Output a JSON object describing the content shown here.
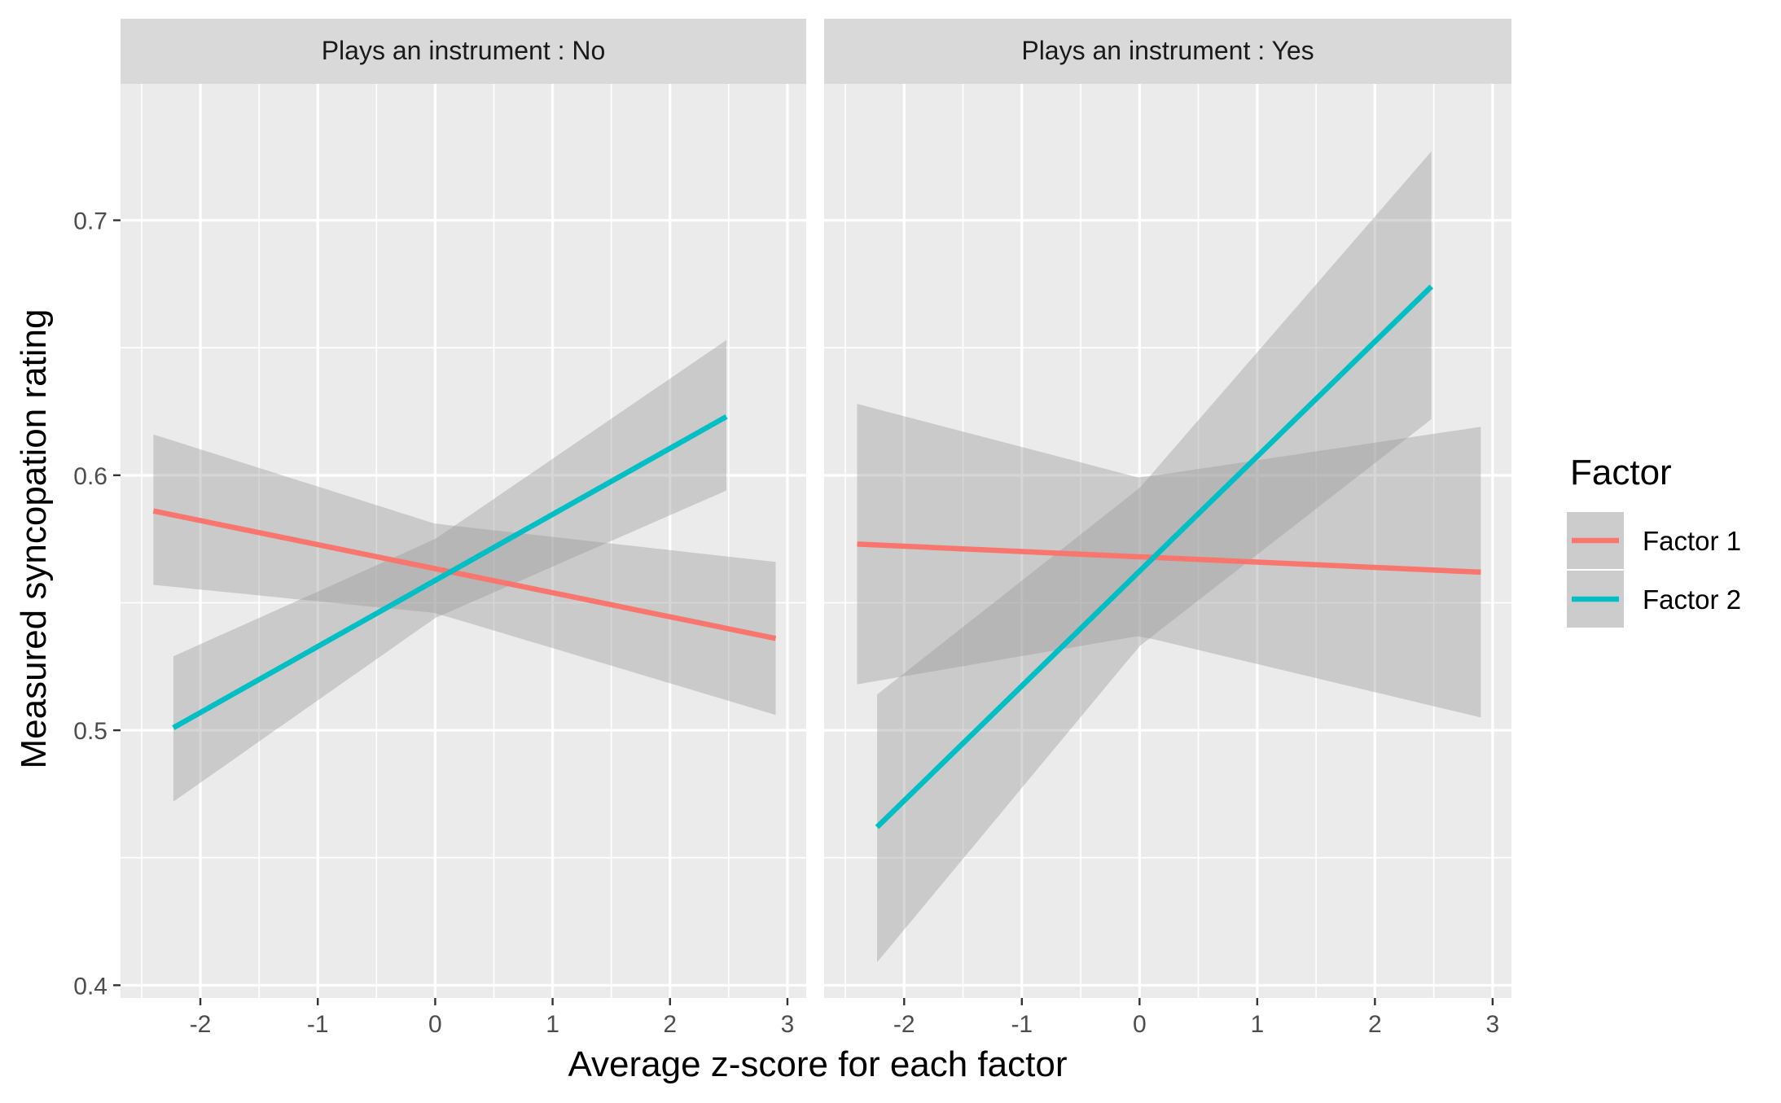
{
  "chart_data": {
    "type": "line",
    "xlabel": "Average z-score for each factor",
    "ylabel": "Measured syncopation rating",
    "xlim": [
      -2.68,
      3.16
    ],
    "ylim": [
      0.395,
      0.7535
    ],
    "x_ticks": [
      -2,
      -1,
      0,
      1,
      2,
      3
    ],
    "x_tick_labels": [
      "-2",
      "-1",
      "0",
      "1",
      "2",
      "3"
    ],
    "y_ticks": [
      0.4,
      0.5,
      0.6,
      0.7
    ],
    "y_tick_labels": [
      "0.4",
      "0.5",
      "0.6",
      "0.7"
    ],
    "grid": true,
    "legend": {
      "title": "Factor",
      "position": "right",
      "entries": [
        "Factor 1",
        "Factor 2"
      ]
    },
    "colors": {
      "Factor 1": "#F8766D",
      "Factor 2": "#00BFC4",
      "ribbon": "#999999",
      "panel_bg": "#EBEBEB",
      "strip_bg": "#D9D9D9"
    },
    "panels": [
      {
        "strip_label": "Plays an instrument : No",
        "series": [
          {
            "name": "Factor 1",
            "x": [
              -2.4,
              2.9
            ],
            "y": [
              0.586,
              0.536
            ],
            "ci_x": [
              -2.4,
              0,
              2.9
            ],
            "ci_lower": [
              0.557,
              0.546,
              0.506
            ],
            "ci_upper": [
              0.616,
              0.581,
              0.566
            ]
          },
          {
            "name": "Factor 2",
            "x": [
              -2.23,
              2.48
            ],
            "y": [
              0.501,
              0.623
            ],
            "ci_x": [
              -2.23,
              0,
              2.48
            ],
            "ci_lower": [
              0.472,
              0.544,
              0.594
            ],
            "ci_upper": [
              0.529,
              0.575,
              0.653
            ]
          }
        ]
      },
      {
        "strip_label": "Plays an instrument : Yes",
        "series": [
          {
            "name": "Factor 1",
            "x": [
              -2.4,
              2.9
            ],
            "y": [
              0.573,
              0.562
            ],
            "ci_x": [
              -2.4,
              0,
              2.9
            ],
            "ci_lower": [
              0.518,
              0.537,
              0.505
            ],
            "ci_upper": [
              0.628,
              0.599,
              0.619
            ]
          },
          {
            "name": "Factor 2",
            "x": [
              -2.23,
              2.48
            ],
            "y": [
              0.462,
              0.674
            ],
            "ci_x": [
              -2.23,
              0,
              2.48
            ],
            "ci_lower": [
              0.409,
              0.533,
              0.622
            ],
            "ci_upper": [
              0.514,
              0.595,
              0.727
            ]
          }
        ]
      }
    ]
  }
}
